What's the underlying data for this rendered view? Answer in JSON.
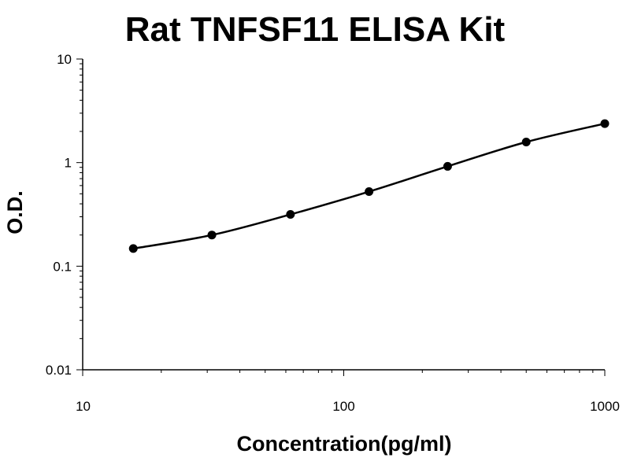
{
  "chart_data": {
    "type": "line",
    "title": "Rat TNFSF11 ELISA Kit",
    "xlabel": "Concentration(pg/ml)",
    "ylabel": "O.D.",
    "xscale": "log",
    "yscale": "log",
    "xlim": [
      10,
      1000
    ],
    "ylim": [
      0.01,
      10
    ],
    "x_ticks": [
      "10",
      "100",
      "1000"
    ],
    "y_ticks": [
      "0.01",
      "0.1",
      "1",
      "10"
    ],
    "grid": false,
    "legend": "none",
    "series": [
      {
        "x": [
          15.625,
          31.25,
          62.5,
          125,
          250,
          500,
          1000
        ],
        "y": [
          0.148,
          0.2,
          0.316,
          0.525,
          0.92,
          1.58,
          2.38
        ],
        "color": "#000000",
        "marker": "circle",
        "smooth": true
      }
    ]
  }
}
